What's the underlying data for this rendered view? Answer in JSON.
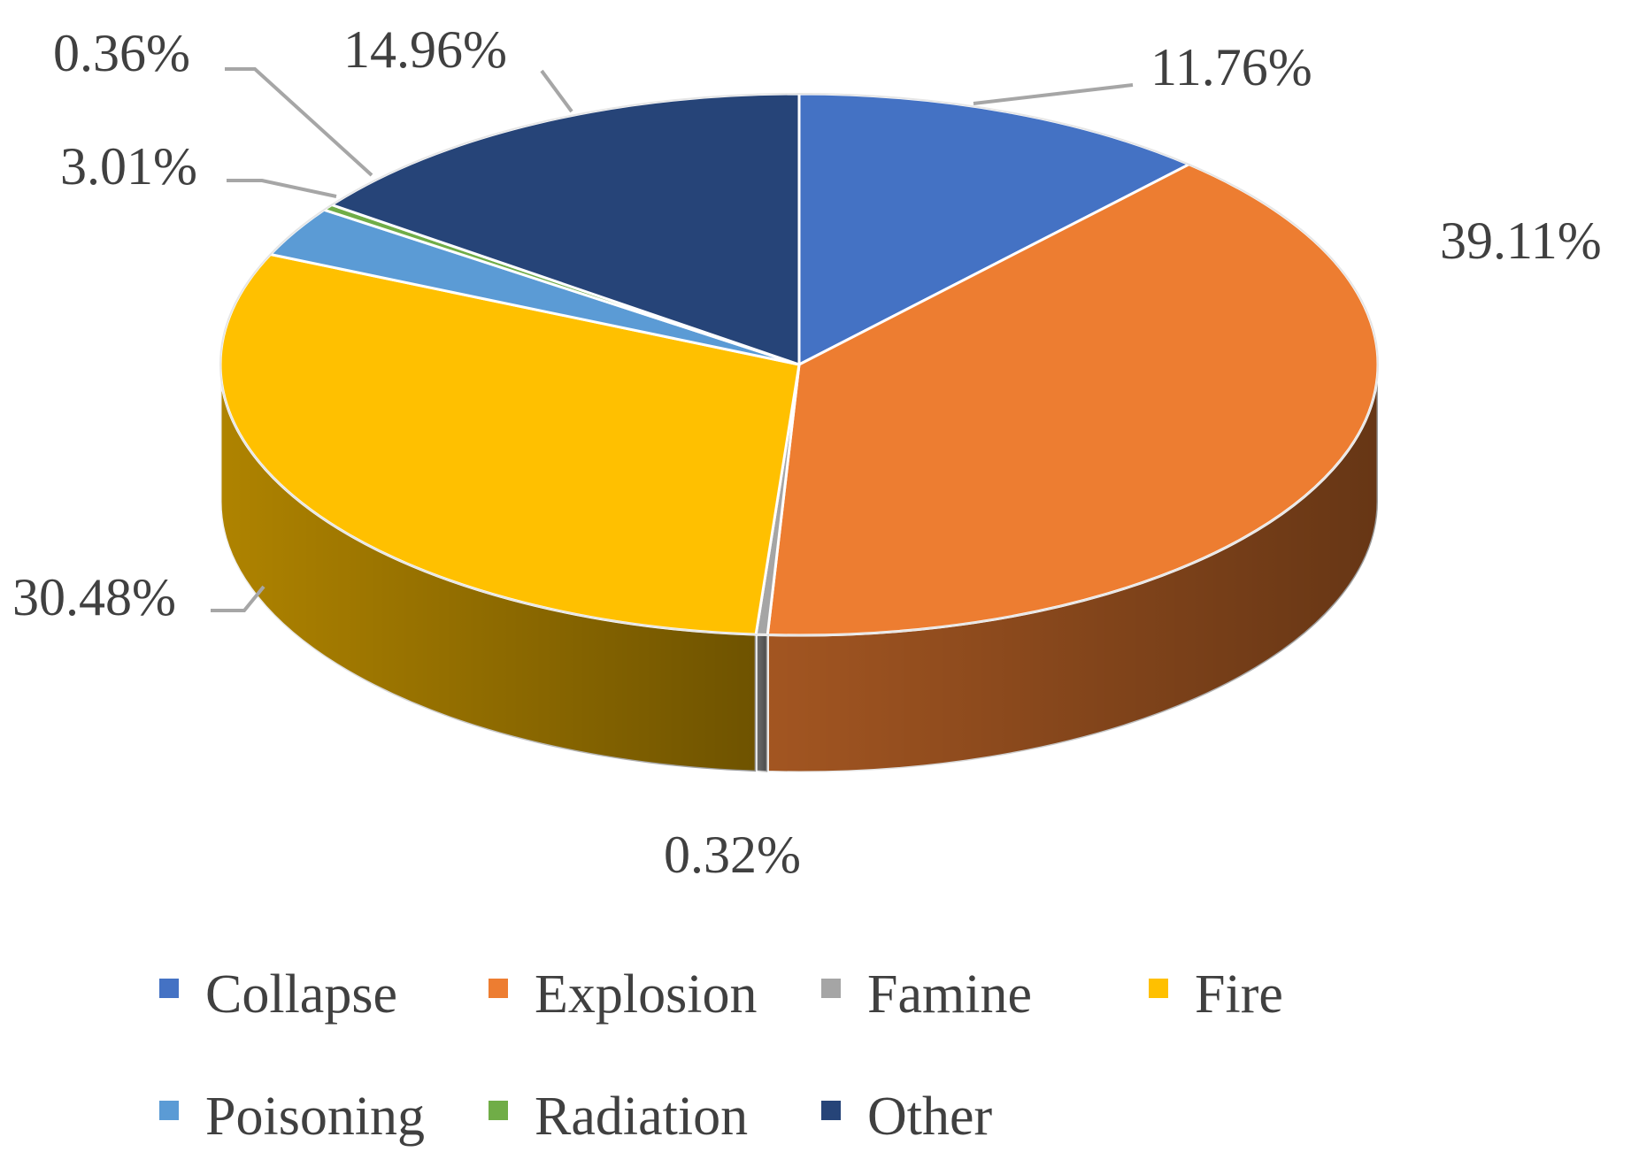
{
  "chart_data": {
    "type": "pie",
    "variant": "3d",
    "title": "",
    "slices": [
      {
        "name": "Collapse",
        "value": 11.76,
        "label": "11.76%",
        "color": "#4472C4"
      },
      {
        "name": "Explosion",
        "value": 39.11,
        "label": "39.11%",
        "color": "#ED7D31"
      },
      {
        "name": "Famine",
        "value": 0.32,
        "label": "0.32%",
        "color": "#A5A5A5"
      },
      {
        "name": "Fire",
        "value": 30.48,
        "label": "30.48%",
        "color": "#FFC000"
      },
      {
        "name": "Poisoning",
        "value": 3.01,
        "label": "3.01%",
        "color": "#5B9BD5"
      },
      {
        "name": "Radiation",
        "value": 0.36,
        "label": "0.36%",
        "color": "#70AD47"
      },
      {
        "name": "Other",
        "value": 14.96,
        "label": "14.96%",
        "color": "#264478"
      }
    ],
    "legend_position": "bottom"
  }
}
